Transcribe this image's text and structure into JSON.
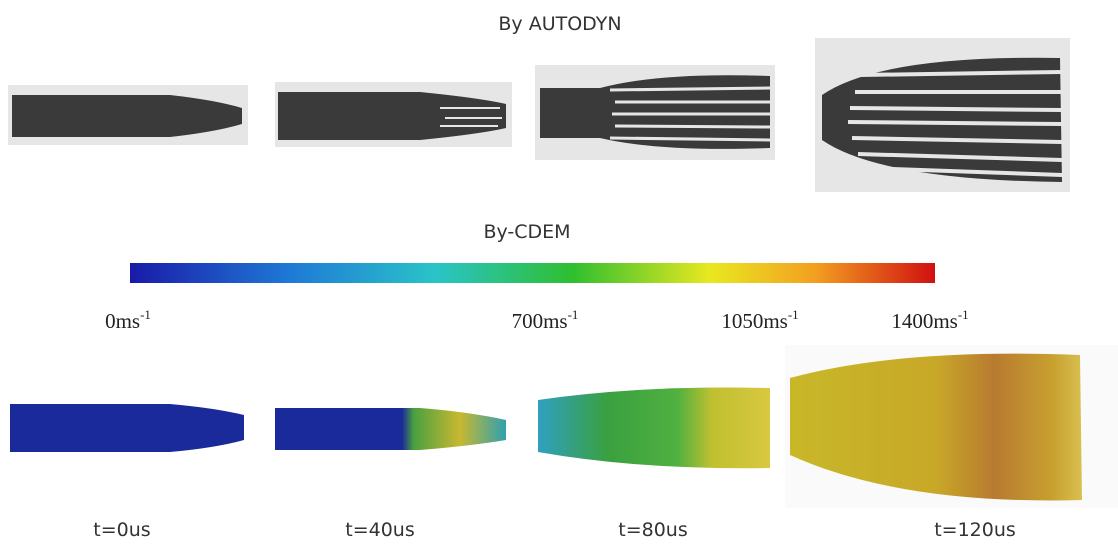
{
  "top_title": "By AUTODYN",
  "bottom_title": "By-CDEM",
  "colorbar_labels": [
    {
      "text": "0ms",
      "sup": "-1"
    },
    {
      "text": "700ms",
      "sup": "-1"
    },
    {
      "text": "1050ms",
      "sup": "-1"
    },
    {
      "text": "1400ms",
      "sup": "-1"
    }
  ],
  "time_labels": [
    "t=0us",
    "t=40us",
    "t=80us",
    "t=120us"
  ]
}
